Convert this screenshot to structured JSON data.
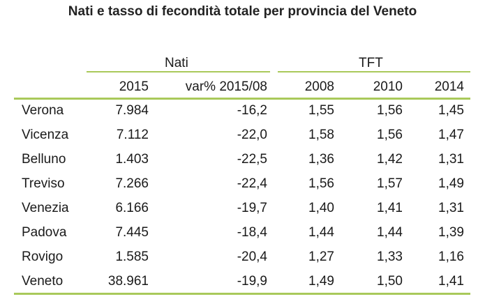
{
  "title": "Nati e tasso di fecondità totale per provincia del Veneto",
  "accent_color": "#a9c95a",
  "table": {
    "group_headers": {
      "nati": "Nati",
      "tft": "TFT"
    },
    "columns": {
      "n2015": "2015",
      "var": "var% 2015/08",
      "y2008": "2008",
      "y2010": "2010",
      "y2014": "2014"
    },
    "rows": [
      {
        "name": "Verona",
        "n2015": "7.984",
        "var": "-16,2",
        "y2008": "1,55",
        "y2010": "1,56",
        "y2014": "1,45"
      },
      {
        "name": "Vicenza",
        "n2015": "7.112",
        "var": "-22,0",
        "y2008": "1,58",
        "y2010": "1,56",
        "y2014": "1,47"
      },
      {
        "name": "Belluno",
        "n2015": "1.403",
        "var": "-22,5",
        "y2008": "1,36",
        "y2010": "1,42",
        "y2014": "1,31"
      },
      {
        "name": "Treviso",
        "n2015": "7.266",
        "var": "-22,4",
        "y2008": "1,56",
        "y2010": "1,57",
        "y2014": "1,49"
      },
      {
        "name": "Venezia",
        "n2015": "6.166",
        "var": "-19,7",
        "y2008": "1,40",
        "y2010": "1,41",
        "y2014": "1,31"
      },
      {
        "name": "Padova",
        "n2015": "7.445",
        "var": "-18,4",
        "y2008": "1,44",
        "y2010": "1,44",
        "y2014": "1,39"
      },
      {
        "name": "Rovigo",
        "n2015": "1.585",
        "var": "-20,4",
        "y2008": "1,27",
        "y2010": "1,33",
        "y2014": "1,16"
      },
      {
        "name": "Veneto",
        "n2015": "38.961",
        "var": "-19,9",
        "y2008": "1,49",
        "y2010": "1,50",
        "y2014": "1,41"
      }
    ]
  }
}
